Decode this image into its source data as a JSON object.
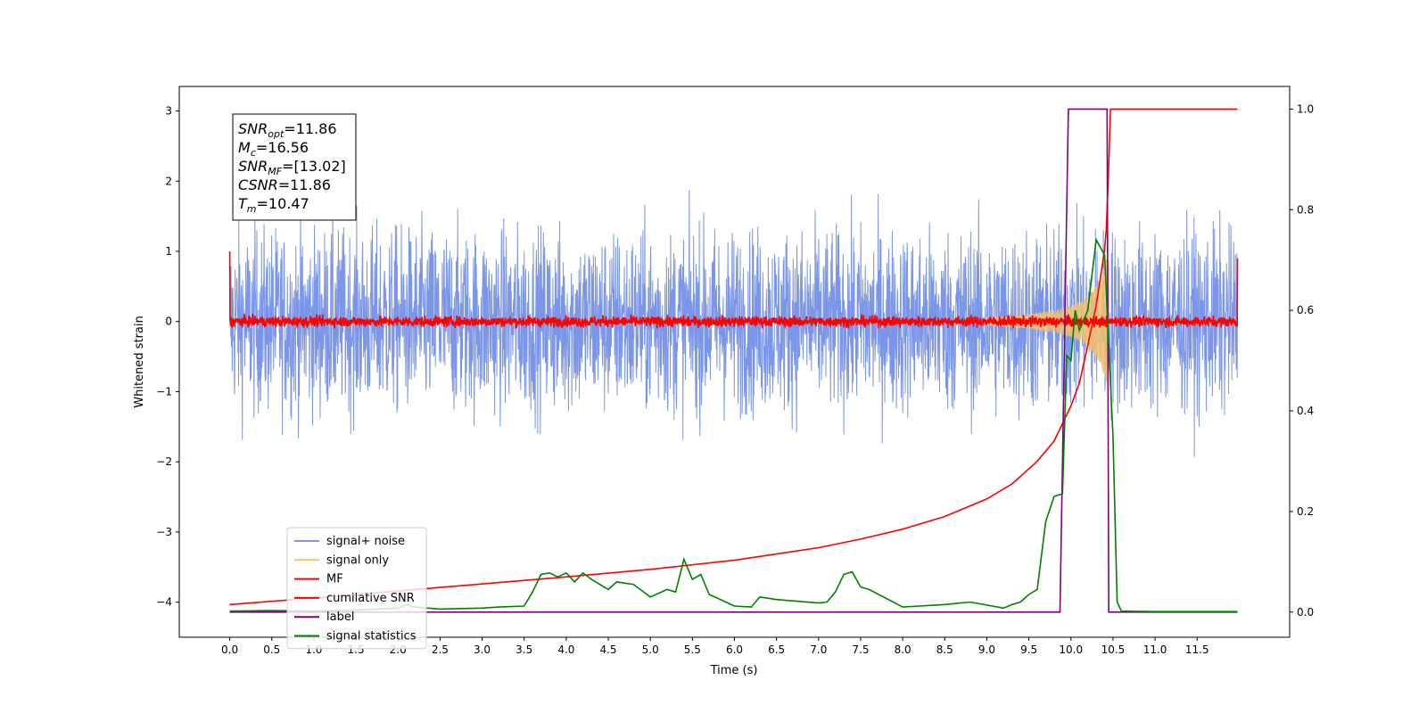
{
  "chart_data": {
    "type": "line",
    "xlabel": "Time (s)",
    "ylabel": "Whitened strain",
    "xlim": [
      -0.6,
      12.6
    ],
    "ylim": [
      -4.5,
      3.35
    ],
    "y2lim": [
      -0.05,
      1.045
    ],
    "xticks": [
      "0.0",
      "0.5",
      "1.0",
      "1.5",
      "2.0",
      "2.5",
      "3.0",
      "3.5",
      "4.0",
      "4.5",
      "5.0",
      "5.5",
      "6.0",
      "6.5",
      "7.0",
      "7.5",
      "8.0",
      "8.5",
      "9.0",
      "9.5",
      "10.0",
      "10.5",
      "11.0",
      "11.5"
    ],
    "yticks": [
      "3",
      "2",
      "1",
      "0",
      "−1",
      "−2",
      "−3",
      "−4"
    ],
    "y2ticks": [
      "1.0",
      "0.8",
      "0.6",
      "0.4",
      "0.2",
      "0.0"
    ],
    "legend_position": "lower-left",
    "grid": false,
    "annotation": {
      "lines": [
        {
          "sym": "SNR",
          "sub": "opt",
          "val": "=11.86"
        },
        {
          "sym": "M",
          "sub": "c",
          "val": "=16.56"
        },
        {
          "sym": "SNR",
          "sub": "MF",
          "val": "=[13.02]"
        },
        {
          "sym": "CSNR",
          "sub": "",
          "val": "=11.86"
        },
        {
          "sym": "T",
          "sub": "m",
          "val": "=10.47"
        }
      ]
    },
    "series": [
      {
        "name": "signal+ noise",
        "color": "#7b96e8",
        "axis": "left",
        "kind": "noise",
        "amplitude": 1.55,
        "x_range": [
          0,
          11.98
        ]
      },
      {
        "name": "signal only",
        "color": "#f5c16c",
        "axis": "left",
        "kind": "chirp",
        "x": [
          9.0,
          9.5,
          9.8,
          10.0,
          10.2,
          10.35,
          10.45
        ],
        "envelope": [
          0.05,
          0.1,
          0.16,
          0.22,
          0.35,
          0.6,
          1.0
        ]
      },
      {
        "name": "MF",
        "color": "#ff0000",
        "axis": "left",
        "kind": "noise",
        "amplitude": 0.09,
        "x_range": [
          0,
          11.98
        ],
        "edges": [
          1.0,
          0.9
        ]
      },
      {
        "name": "cumilative SNR",
        "color": "#ff0000",
        "axis": "right",
        "x": [
          0.0,
          1.0,
          2.0,
          3.0,
          4.0,
          5.0,
          6.0,
          7.0,
          7.5,
          8.0,
          8.5,
          9.0,
          9.3,
          9.6,
          9.8,
          10.0,
          10.1,
          10.2,
          10.3,
          10.4,
          10.42,
          10.45,
          10.47,
          10.5,
          11.0,
          11.5,
          11.98
        ],
        "y": [
          0.015,
          0.028,
          0.042,
          0.056,
          0.07,
          0.085,
          0.103,
          0.128,
          0.145,
          0.165,
          0.19,
          0.225,
          0.255,
          0.3,
          0.34,
          0.41,
          0.455,
          0.53,
          0.61,
          0.72,
          0.76,
          0.89,
          1.0,
          1.0,
          1.0,
          1.0,
          1.0
        ]
      },
      {
        "name": "label",
        "color": "#800080",
        "axis": "right",
        "x": [
          0.0,
          9.87,
          9.97,
          10.43,
          10.45,
          11.98
        ],
        "y": [
          0.0,
          0.0,
          1.0,
          1.0,
          0.0,
          0.0
        ]
      },
      {
        "name": "signal statistics",
        "color": "#008000",
        "axis": "right",
        "x": [
          0.0,
          0.5,
          1.0,
          1.5,
          2.0,
          2.1,
          2.2,
          2.5,
          3.0,
          3.2,
          3.5,
          3.6,
          3.7,
          3.8,
          3.9,
          4.0,
          4.1,
          4.2,
          4.3,
          4.5,
          4.6,
          4.8,
          5.0,
          5.2,
          5.3,
          5.4,
          5.5,
          5.6,
          5.7,
          6.0,
          6.2,
          6.3,
          6.5,
          7.0,
          7.1,
          7.2,
          7.3,
          7.4,
          7.5,
          7.6,
          8.0,
          8.5,
          8.8,
          9.2,
          9.3,
          9.4,
          9.5,
          9.6,
          9.7,
          9.8,
          9.9,
          9.95,
          10.0,
          10.05,
          10.1,
          10.2,
          10.3,
          10.4,
          10.5,
          10.55,
          10.6,
          11.0,
          11.5,
          11.98
        ],
        "y": [
          0.002,
          0.003,
          0.002,
          0.004,
          0.008,
          0.015,
          0.01,
          0.006,
          0.008,
          0.01,
          0.012,
          0.04,
          0.075,
          0.078,
          0.07,
          0.078,
          0.06,
          0.078,
          0.065,
          0.045,
          0.06,
          0.055,
          0.03,
          0.045,
          0.04,
          0.105,
          0.065,
          0.075,
          0.035,
          0.012,
          0.01,
          0.03,
          0.025,
          0.018,
          0.02,
          0.04,
          0.075,
          0.08,
          0.05,
          0.045,
          0.01,
          0.015,
          0.02,
          0.008,
          0.015,
          0.02,
          0.035,
          0.045,
          0.18,
          0.23,
          0.235,
          0.51,
          0.5,
          0.6,
          0.56,
          0.6,
          0.74,
          0.71,
          0.35,
          0.02,
          0.002,
          0.001,
          0.001,
          0.001
        ]
      }
    ]
  }
}
